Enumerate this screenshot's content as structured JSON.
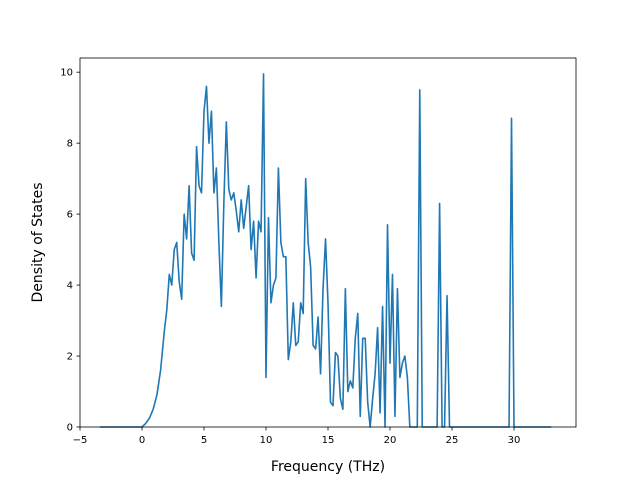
{
  "chart_data": {
    "type": "line",
    "title": "",
    "xlabel": "Frequency (THz)",
    "ylabel": "Density of States",
    "xlim": [
      -5,
      35
    ],
    "ylim": [
      0,
      10.4
    ],
    "grid": false,
    "line_color": "#1f77b4",
    "xticks": [
      -5,
      0,
      5,
      10,
      15,
      20,
      25,
      30
    ],
    "yticks": [
      0,
      2,
      4,
      6,
      8,
      10
    ],
    "xtick_labels": [
      "−5",
      "0",
      "5",
      "10",
      "15",
      "20",
      "25",
      "30"
    ],
    "ytick_labels": [
      "0",
      "2",
      "4",
      "6",
      "8",
      "10"
    ],
    "series": [
      {
        "x": [
          -3.4,
          -2.5,
          -1.5,
          -0.5,
          0.0,
          0.3,
          0.6,
          0.9,
          1.2,
          1.5,
          1.8,
          2.0,
          2.2,
          2.4,
          2.6,
          2.8,
          3.0,
          3.2,
          3.4,
          3.6,
          3.8,
          4.0,
          4.2,
          4.4,
          4.6,
          4.8,
          5.0,
          5.2,
          5.4,
          5.6,
          5.8,
          6.0,
          6.2,
          6.4,
          6.6,
          6.8,
          7.0,
          7.2,
          7.4,
          7.6,
          7.8,
          8.0,
          8.2,
          8.4,
          8.6,
          8.8,
          9.0,
          9.2,
          9.4,
          9.6,
          9.8,
          10.0,
          10.2,
          10.4,
          10.6,
          10.8,
          11.0,
          11.2,
          11.4,
          11.6,
          11.8,
          12.0,
          12.2,
          12.4,
          12.6,
          12.8,
          13.0,
          13.2,
          13.4,
          13.6,
          13.8,
          14.0,
          14.2,
          14.4,
          14.6,
          14.8,
          15.0,
          15.2,
          15.4,
          15.6,
          15.8,
          16.0,
          16.2,
          16.4,
          16.6,
          16.8,
          17.0,
          17.2,
          17.4,
          17.6,
          17.8,
          18.0,
          18.2,
          18.4,
          18.6,
          18.8,
          19.0,
          19.2,
          19.4,
          19.6,
          19.8,
          20.0,
          20.2,
          20.4,
          20.6,
          20.8,
          21.0,
          21.2,
          21.4,
          21.6,
          21.8,
          22.0,
          22.2,
          22.4,
          22.6,
          22.8,
          23.0,
          23.2,
          23.4,
          23.6,
          23.8,
          24.0,
          24.2,
          24.4,
          24.6,
          24.8,
          25.0,
          26.0,
          27.0,
          28.0,
          29.0,
          29.6,
          29.8,
          30.0,
          30.2,
          31.0,
          32.0,
          33.0
        ],
        "y": [
          0.0,
          0.0,
          0.0,
          0.0,
          0.0,
          0.1,
          0.25,
          0.5,
          0.9,
          1.6,
          2.7,
          3.3,
          4.3,
          4.0,
          5.0,
          5.2,
          4.1,
          3.6,
          6.0,
          5.3,
          6.8,
          4.9,
          4.7,
          7.9,
          6.8,
          6.6,
          8.9,
          9.6,
          8.0,
          8.9,
          6.6,
          7.3,
          5.2,
          3.4,
          6.3,
          8.6,
          6.7,
          6.4,
          6.6,
          6.1,
          5.5,
          6.4,
          5.6,
          6.2,
          6.8,
          5.0,
          5.8,
          4.2,
          5.8,
          5.5,
          9.95,
          1.4,
          5.9,
          3.5,
          4.0,
          4.2,
          7.3,
          5.2,
          4.8,
          4.8,
          1.9,
          2.4,
          3.5,
          2.3,
          2.4,
          3.5,
          3.2,
          7.0,
          5.2,
          4.5,
          2.3,
          2.2,
          3.1,
          1.5,
          3.9,
          5.3,
          3.5,
          0.7,
          0.6,
          2.1,
          2.0,
          0.8,
          0.5,
          3.9,
          1.0,
          1.3,
          1.1,
          2.5,
          3.2,
          0.3,
          2.5,
          2.5,
          0.7,
          0.0,
          0.8,
          1.5,
          2.8,
          0.4,
          3.4,
          0.0,
          5.7,
          1.8,
          4.3,
          0.3,
          3.9,
          1.4,
          1.8,
          2.0,
          1.4,
          0.0,
          0.0,
          0.0,
          0.0,
          9.5,
          0.0,
          0.0,
          0.0,
          0.0,
          0.0,
          0.0,
          0.0,
          6.3,
          0.0,
          0.0,
          3.7,
          0.0,
          0.0,
          0.0,
          0.0,
          0.0,
          0.0,
          0.0,
          8.7,
          0.0,
          0.0,
          0.0,
          0.0,
          0.0
        ]
      }
    ]
  }
}
